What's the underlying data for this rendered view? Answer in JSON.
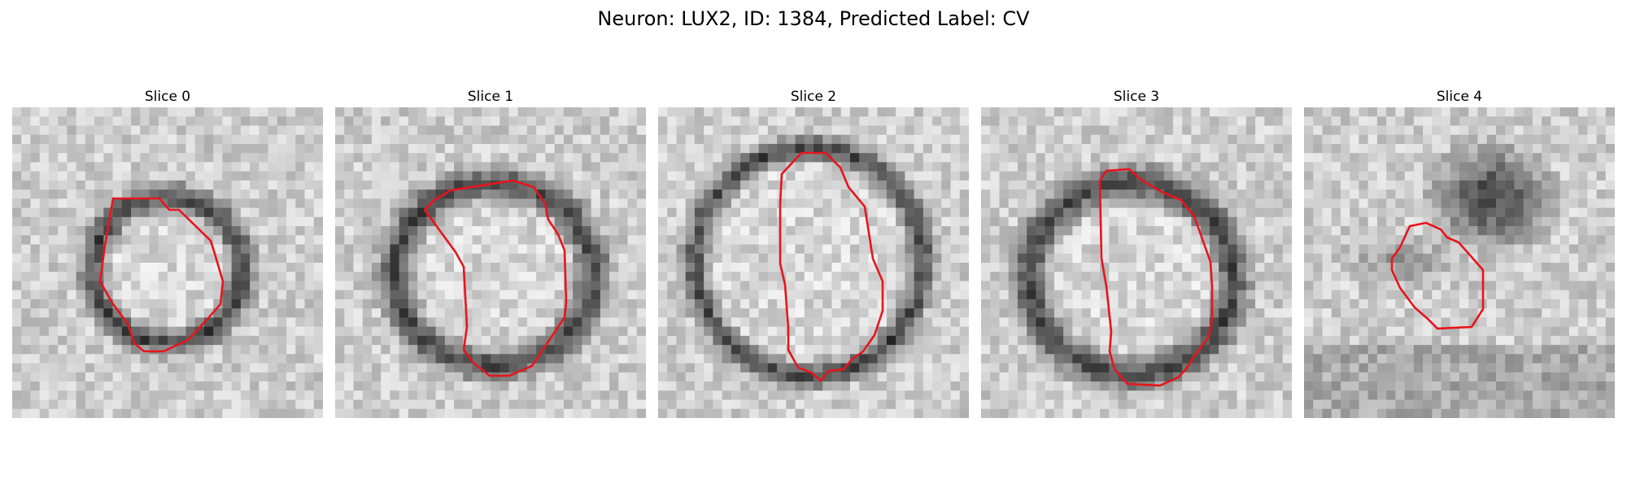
{
  "figure": {
    "title": "Neuron: LUX2, ID: 1384, Predicted Label: CV"
  },
  "colors": {
    "outline": "#e8141c",
    "background": "#ffffff"
  },
  "panels": [
    {
      "title": "Slice 0"
    },
    {
      "title": "Slice 1"
    },
    {
      "title": "Slice 2"
    },
    {
      "title": "Slice 3"
    },
    {
      "title": "Slice 4"
    }
  ]
}
